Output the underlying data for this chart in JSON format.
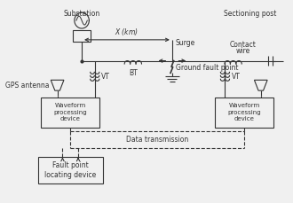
{
  "figsize": [
    3.3,
    2.29
  ],
  "dpi": 100,
  "bg_color": "#f0f0f0",
  "line_color": "#333333",
  "labels": {
    "substation": "Substation",
    "x_km": "X  (km)",
    "surge": "Surge",
    "contact_wire": "Contact\nwire",
    "sectioning_post": "Sectioning post",
    "gps_antenna": "GPS antenna",
    "bt": "BT",
    "vt": "VT",
    "ground_fault": "Ground fault point",
    "waveform": "Waveform\nprocessing\ndevice",
    "data_transmission": "Data transmission",
    "fault_locating": "Fault point\nlocating device"
  }
}
